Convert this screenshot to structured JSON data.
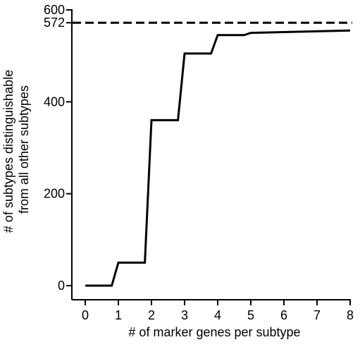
{
  "chart_data": {
    "type": "line",
    "step": true,
    "title": "",
    "xlabel": "# of marker genes per subtype",
    "ylabel_lines": [
      "# of subtypes distinguishable",
      "from all other subtypes"
    ],
    "xlim": [
      0,
      8
    ],
    "ylim": [
      0,
      600
    ],
    "x_ticks": [
      0,
      1,
      2,
      3,
      4,
      5,
      6,
      7,
      8
    ],
    "y_ticks": [
      0,
      200,
      400,
      572,
      600
    ],
    "y_tick_labels": [
      "0",
      "200",
      "400",
      "572",
      "600"
    ],
    "reference_line": {
      "value": 572,
      "style": "dashed"
    },
    "grid": false,
    "legend": "none",
    "series": [
      {
        "x": [
          0,
          0.8,
          1,
          1.8,
          2,
          2.8,
          3,
          3.8,
          4,
          4.8,
          5,
          8
        ],
        "y": [
          0,
          0,
          50,
          50,
          360,
          360,
          505,
          505,
          545,
          545,
          550,
          555
        ]
      }
    ]
  }
}
